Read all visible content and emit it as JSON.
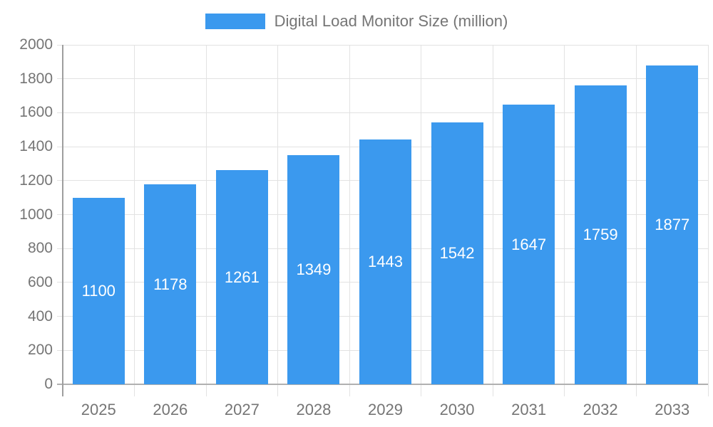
{
  "legend": {
    "label": "Digital Load Monitor Size (million)"
  },
  "chart_data": {
    "type": "bar",
    "title": "Digital Load Monitor Size (million)",
    "categories": [
      "2025",
      "2026",
      "2027",
      "2028",
      "2029",
      "2030",
      "2031",
      "2032",
      "2033"
    ],
    "values": [
      1100,
      1178,
      1261,
      1349,
      1443,
      1542,
      1647,
      1759,
      1877
    ],
    "xlabel": "",
    "ylabel": "",
    "ylim": [
      0,
      2000
    ],
    "y_ticks": [
      0,
      200,
      400,
      600,
      800,
      1000,
      1200,
      1400,
      1600,
      1800,
      2000
    ],
    "grid": true,
    "legend_position": "top-center",
    "value_labels": "inside-center-white"
  },
  "colors": {
    "bar": "#3b99ee",
    "axis_text": "#757575",
    "value_label_text": "#ffffff",
    "gridline": "#e2e2e2",
    "y_axis_line": "#9e9e9e",
    "x_axis_line": "#b0b0b0",
    "background": "#ffffff"
  }
}
